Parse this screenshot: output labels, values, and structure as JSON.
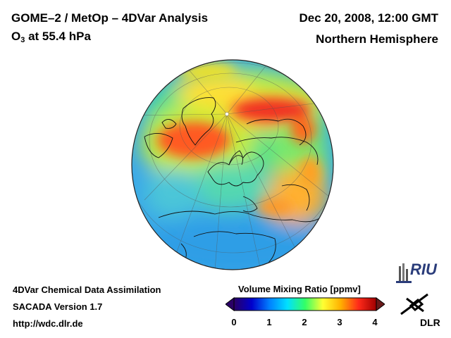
{
  "header": {
    "title": "GOME–2 / MetOp – 4DVar Analysis",
    "subtitle_prefix": "O",
    "subtitle_sub": "3",
    "subtitle_suffix": " at 55.4 hPa",
    "datetime": "Dec 20, 2008, 12:00 GMT",
    "region": "Northern Hemisphere"
  },
  "footer": {
    "line1": "4DVar Chemical Data Assimilation",
    "line2": "SACADA Version 1.7",
    "line3": "http://wdc.dlr.de"
  },
  "colorbar": {
    "title": "Volume Mixing Ratio [ppmv]",
    "min": 0,
    "max": 4,
    "ticks": [
      "0",
      "1",
      "2",
      "3",
      "4"
    ],
    "colors": [
      "#2a0066",
      "#0000cc",
      "#0080ff",
      "#00e0ff",
      "#33ff66",
      "#ffff33",
      "#ffb000",
      "#ff2a1a",
      "#a00000"
    ]
  },
  "logos": {
    "riu": "RIU",
    "dlr": "DLR"
  },
  "map": {
    "ocean_color": "#3aa8e8"
  }
}
